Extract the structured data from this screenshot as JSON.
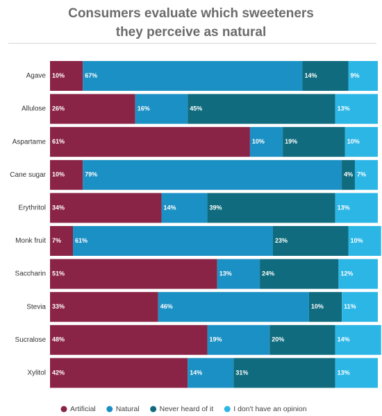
{
  "chart_data": {
    "type": "stacked-bar-horizontal",
    "title": "Consumers evaluate which sweeteners they perceive as natural",
    "categories": [
      "Agave",
      "Allulose",
      "Aspartame",
      "Cane sugar",
      "Erythritol",
      "Monk fruit",
      "Saccharin",
      "Stevia",
      "Sucralose",
      "Xylitol"
    ],
    "xlim": [
      0,
      100
    ],
    "series": [
      {
        "name": "Artificial",
        "color": "#8a2446",
        "values": [
          10,
          26,
          61,
          10,
          34,
          7,
          51,
          33,
          48,
          42
        ],
        "value_labels": [
          "10%",
          "26%",
          "61%",
          "10%",
          "34%",
          "7%",
          "51%",
          "33%",
          "48%",
          "42%"
        ]
      },
      {
        "name": "Natural",
        "color": "#1b90c4",
        "values": [
          67,
          16,
          10,
          79,
          14,
          61,
          13,
          46,
          19,
          14
        ],
        "value_labels": [
          "67%",
          "16%",
          "10%",
          "79%",
          "14%",
          "61%",
          "13%",
          "46%",
          "19%",
          "14%"
        ]
      },
      {
        "name": "Never heard of it",
        "color": "#0f6b7d",
        "values": [
          14,
          45,
          19,
          4,
          39,
          23,
          24,
          10,
          20,
          31
        ],
        "value_labels": [
          "14%",
          "45%",
          "19%",
          "4%",
          "39%",
          "23%",
          "24%",
          "10%",
          "20%",
          "31%"
        ]
      },
      {
        "name": "I don't have an opinion",
        "color": "#2cb6e5",
        "values": [
          9,
          13,
          10,
          7,
          13,
          10,
          12,
          11,
          14,
          13
        ],
        "value_labels": [
          "9%",
          "13%",
          "10%",
          "7%",
          "13%",
          "10%",
          "12%",
          "11%",
          "14%",
          "13%"
        ]
      }
    ]
  }
}
